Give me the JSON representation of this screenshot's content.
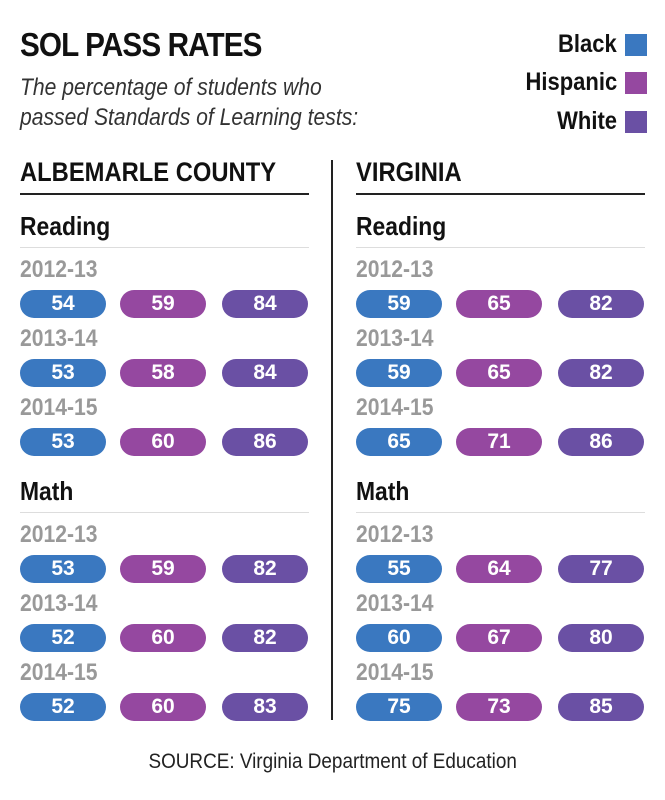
{
  "title": "SOL PASS RATES",
  "subtitle_lines": [
    "The percentage of students who",
    "passed Standards of Learning tests:"
  ],
  "legend": [
    {
      "label": "Black",
      "color": "#3a78c0"
    },
    {
      "label": "Hispanic",
      "color": "#9548a0"
    },
    {
      "label": "White",
      "color": "#6a50a4"
    }
  ],
  "source": "SOURCE: Virginia Department of Education",
  "chart_data": {
    "type": "table",
    "title": "SOL PASS RATES",
    "series_names": [
      "Black",
      "Hispanic",
      "White"
    ],
    "regions": [
      {
        "name": "ALBEMARLE COUNTY",
        "subjects": [
          {
            "name": "Reading",
            "years": [
              {
                "year": "2012-13",
                "values": [
                  54,
                  59,
                  84
                ]
              },
              {
                "year": "2013-14",
                "values": [
                  53,
                  58,
                  84
                ]
              },
              {
                "year": "2014-15",
                "values": [
                  53,
                  60,
                  86
                ]
              }
            ]
          },
          {
            "name": "Math",
            "years": [
              {
                "year": "2012-13",
                "values": [
                  53,
                  59,
                  82
                ]
              },
              {
                "year": "2013-14",
                "values": [
                  52,
                  60,
                  82
                ]
              },
              {
                "year": "2014-15",
                "values": [
                  52,
                  60,
                  83
                ]
              }
            ]
          }
        ]
      },
      {
        "name": "VIRGINIA",
        "subjects": [
          {
            "name": "Reading",
            "years": [
              {
                "year": "2012-13",
                "values": [
                  59,
                  65,
                  82
                ]
              },
              {
                "year": "2013-14",
                "values": [
                  59,
                  65,
                  82
                ]
              },
              {
                "year": "2014-15",
                "values": [
                  65,
                  71,
                  86
                ]
              }
            ]
          },
          {
            "name": "Math",
            "years": [
              {
                "year": "2012-13",
                "values": [
                  55,
                  64,
                  77
                ]
              },
              {
                "year": "2013-14",
                "values": [
                  60,
                  67,
                  80
                ]
              },
              {
                "year": "2014-15",
                "values": [
                  75,
                  73,
                  85
                ]
              }
            ]
          }
        ]
      }
    ]
  }
}
